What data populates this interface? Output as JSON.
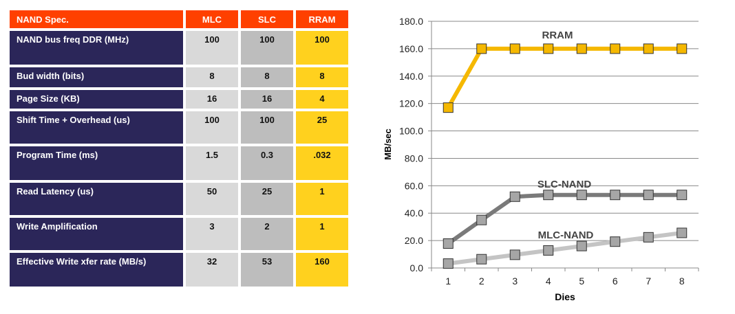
{
  "table": {
    "headers": [
      "NAND Spec.",
      "MLC",
      "SLC",
      "RRAM"
    ],
    "rows": [
      {
        "label": "NAND bus freq DDR (MHz)",
        "mlc": "100",
        "slc": "100",
        "rram": "100"
      },
      {
        "label": "Bud width (bits)",
        "mlc": "8",
        "slc": "8",
        "rram": "8"
      },
      {
        "label": "Page Size (KB)",
        "mlc": "16",
        "slc": "16",
        "rram": "4"
      },
      {
        "label": "Shift Time + Overhead (us)",
        "mlc": "100",
        "slc": "100",
        "rram": "25"
      },
      {
        "label": "Program Time (ms)",
        "mlc": "1.5",
        "slc": "0.3",
        "rram": ".032"
      },
      {
        "label": "Read Latency (us)",
        "mlc": "50",
        "slc": "25",
        "rram": "1"
      },
      {
        "label": "Write Amplification",
        "mlc": "3",
        "slc": "2",
        "rram": "1"
      },
      {
        "label": "Effective Write xfer rate (MB/s)",
        "mlc": "32",
        "slc": "53",
        "rram": "160"
      }
    ]
  },
  "chart_data": {
    "type": "line",
    "xlabel": "Dies",
    "ylabel": "MB/sec",
    "categories": [
      "1",
      "2",
      "3",
      "4",
      "5",
      "6",
      "7",
      "8"
    ],
    "ylim": [
      0,
      180
    ],
    "yticks": [
      "0.0",
      "20.0",
      "40.0",
      "60.0",
      "80.0",
      "100.0",
      "120.0",
      "140.0",
      "160.0",
      "180.0"
    ],
    "grid": true,
    "series": [
      {
        "name": "RRAM",
        "color": "#f5b800",
        "values": [
          117,
          160,
          160,
          160,
          160,
          160,
          160,
          160
        ]
      },
      {
        "name": "SLC-NAND",
        "color": "#7a7a7a",
        "values": [
          17.8,
          35,
          52,
          53.3,
          53.3,
          53.3,
          53.3,
          53.3
        ]
      },
      {
        "name": "MLC-NAND",
        "color": "#c4c4c4",
        "values": [
          3.2,
          6.4,
          9.6,
          12.8,
          16,
          19.2,
          22.4,
          25.6
        ]
      }
    ]
  }
}
